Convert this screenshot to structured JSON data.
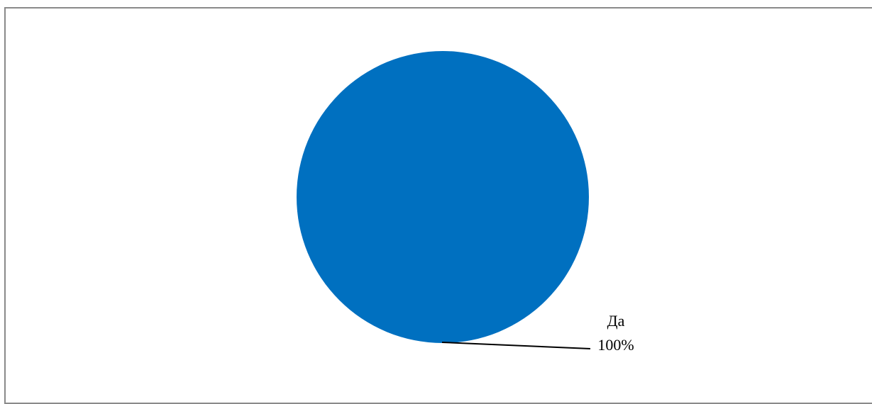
{
  "chart_data": {
    "type": "pie",
    "categories": [
      "Да"
    ],
    "values": [
      100
    ],
    "data_labels": [
      {
        "category": "Да",
        "percent": "100%"
      }
    ],
    "colors": [
      "#0070c0"
    ],
    "legend": "none"
  }
}
